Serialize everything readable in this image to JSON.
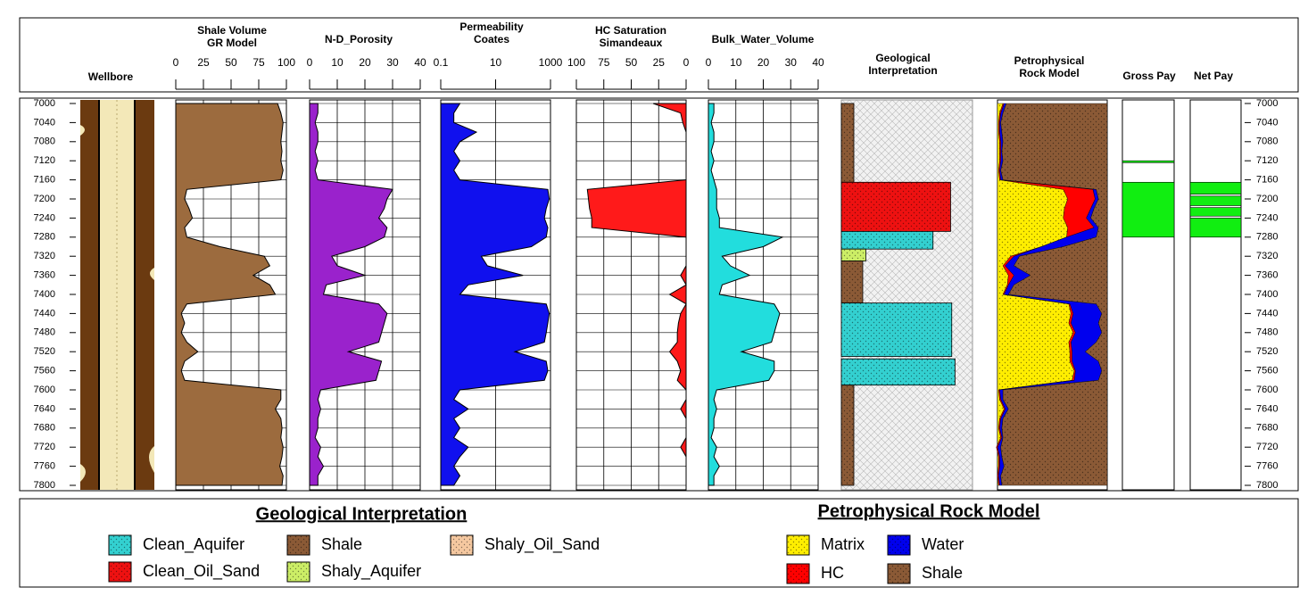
{
  "depth_ticks": [
    7000,
    7040,
    7080,
    7120,
    7160,
    7200,
    7240,
    7280,
    7320,
    7360,
    7400,
    7440,
    7480,
    7520,
    7560,
    7600,
    7640,
    7680,
    7720,
    7760,
    7800
  ],
  "curve_depths": [
    7000,
    7020,
    7040,
    7060,
    7080,
    7100,
    7120,
    7140,
    7160,
    7180,
    7200,
    7220,
    7240,
    7260,
    7280,
    7300,
    7320,
    7340,
    7360,
    7380,
    7400,
    7420,
    7440,
    7460,
    7480,
    7500,
    7520,
    7540,
    7560,
    7580,
    7600,
    7620,
    7640,
    7660,
    7680,
    7700,
    7720,
    7740,
    7760,
    7780,
    7800
  ],
  "tracks": {
    "wellbore": {
      "title": [
        "Wellbore"
      ]
    },
    "shale_volume": {
      "title": [
        "Shale Volume",
        "GR Model"
      ],
      "xlim": [
        0,
        100
      ],
      "xticks": [
        0,
        25,
        50,
        75,
        100
      ],
      "color": "#9c6b3e",
      "values": [
        92,
        95,
        97,
        96,
        95,
        96,
        95,
        97,
        95,
        10,
        8,
        12,
        15,
        8,
        10,
        40,
        80,
        85,
        70,
        85,
        90,
        10,
        5,
        8,
        5,
        10,
        20,
        8,
        5,
        8,
        95,
        95,
        90,
        95,
        96,
        95,
        97,
        96,
        94,
        97,
        96
      ]
    },
    "porosity": {
      "title": [
        "N-D_Porosity"
      ],
      "xlim": [
        0,
        40
      ],
      "xticks": [
        0,
        10,
        20,
        30,
        40
      ],
      "color": "#9a22cc",
      "values": [
        3,
        3,
        2,
        3,
        3,
        2,
        3,
        2,
        3,
        30,
        28,
        27,
        25,
        28,
        27,
        20,
        8,
        10,
        20,
        6,
        5,
        25,
        28,
        27,
        26,
        25,
        14,
        26,
        25,
        24,
        4,
        3,
        4,
        3,
        3,
        2,
        4,
        3,
        5,
        3,
        3
      ]
    },
    "permeability": {
      "title": [
        "Permeability",
        "Coates"
      ],
      "log": true,
      "xlim": [
        0.1,
        1000
      ],
      "xticks": [
        0.1,
        10,
        1000
      ],
      "color": "#1010ee",
      "values": [
        0.5,
        0.3,
        0.3,
        2,
        0.5,
        0.3,
        0.5,
        0.3,
        0.5,
        800,
        900,
        700,
        600,
        800,
        700,
        200,
        3,
        5,
        100,
        1,
        0.5,
        700,
        900,
        800,
        700,
        600,
        50,
        700,
        800,
        600,
        0.5,
        0.3,
        1,
        0.3,
        0.5,
        0.3,
        1,
        0.5,
        0.3,
        0.5,
        0.3
      ]
    },
    "hc_saturation": {
      "title": [
        "HC Saturation",
        "Simandeaux"
      ],
      "xlim": [
        100,
        0
      ],
      "xticks": [
        100,
        75,
        50,
        25,
        0
      ],
      "color": "#ff1a1a",
      "values": [
        30,
        5,
        3,
        0,
        0,
        0,
        0,
        0,
        0,
        90,
        89,
        88,
        86,
        86,
        0,
        0,
        0,
        0,
        5,
        0,
        15,
        0,
        5,
        7,
        8,
        8,
        15,
        8,
        5,
        8,
        0,
        0,
        5,
        0,
        0,
        0,
        5,
        0,
        0,
        0,
        0
      ]
    },
    "bulk_water_volume": {
      "title": [
        "Bulk_Water_Volume"
      ],
      "xlim": [
        0,
        40
      ],
      "xticks": [
        0,
        10,
        20,
        30,
        40
      ],
      "color": "#22dddd",
      "values": [
        2,
        2,
        1,
        2,
        2,
        1,
        2,
        1,
        2,
        3,
        3,
        3,
        4,
        4,
        27,
        20,
        5,
        8,
        15,
        5,
        4,
        24,
        26,
        25,
        24,
        23,
        12,
        24,
        24,
        22,
        3,
        2,
        3,
        2,
        2,
        1,
        3,
        2,
        4,
        2,
        2
      ]
    },
    "geological_interpretation": {
      "title": [
        "Geological",
        "Interpretation"
      ],
      "intervals": [
        {
          "lithology": "Shale",
          "top": 7000,
          "bottom": 7165
        },
        {
          "lithology": "Clean_Oil_Sand",
          "top": 7165,
          "bottom": 7268
        },
        {
          "lithology": "Clean_Aquifer",
          "top": 7268,
          "bottom": 7305
        },
        {
          "lithology": "Shaly_Aquifer",
          "top": 7305,
          "bottom": 7330
        },
        {
          "lithology": "Shale",
          "top": 7330,
          "bottom": 7418
        },
        {
          "lithology": "Clean_Aquifer",
          "top": 7418,
          "bottom": 7530
        },
        {
          "lithology": "Clean_Aquifer",
          "top": 7535,
          "bottom": 7590
        },
        {
          "lithology": "Shale",
          "top": 7590,
          "bottom": 7800
        }
      ]
    },
    "rock_model": {
      "title": [
        "Petrophysical",
        "Rock Model"
      ]
    },
    "gross_pay": {
      "title": [
        "Gross Pay"
      ],
      "color": "#11ee11",
      "intervals": [
        {
          "top": 7165,
          "bottom": 7280
        },
        {
          "top": 7120,
          "bottom": 7124
        }
      ]
    },
    "net_pay": {
      "title": [
        "Net Pay"
      ],
      "color": "#11ee11",
      "intervals": [
        {
          "top": 7165,
          "bottom": 7190
        },
        {
          "top": 7194,
          "bottom": 7214
        },
        {
          "top": 7218,
          "bottom": 7236
        },
        {
          "top": 7240,
          "bottom": 7280
        }
      ]
    }
  },
  "legends": {
    "geological": {
      "title": "Geological Interpretation",
      "items": [
        {
          "name": "Clean_Aquifer",
          "color": "#33d0d0"
        },
        {
          "name": "Clean_Oil_Sand",
          "color": "#ee1111"
        },
        {
          "name": "Shale",
          "color": "#8b5a36"
        },
        {
          "name": "Shaly_Aquifer",
          "color": "#ccee66"
        },
        {
          "name": "Shaly_Oil_Sand",
          "color": "#f5c8a0"
        }
      ]
    },
    "rock": {
      "title": "Petrophysical Rock Model",
      "items": [
        {
          "name": "Matrix",
          "color": "#ffee00"
        },
        {
          "name": "HC",
          "color": "#ff0000"
        },
        {
          "name": "Water",
          "color": "#0000ee"
        },
        {
          "name": "Shale",
          "color": "#8b5a36"
        }
      ]
    }
  }
}
